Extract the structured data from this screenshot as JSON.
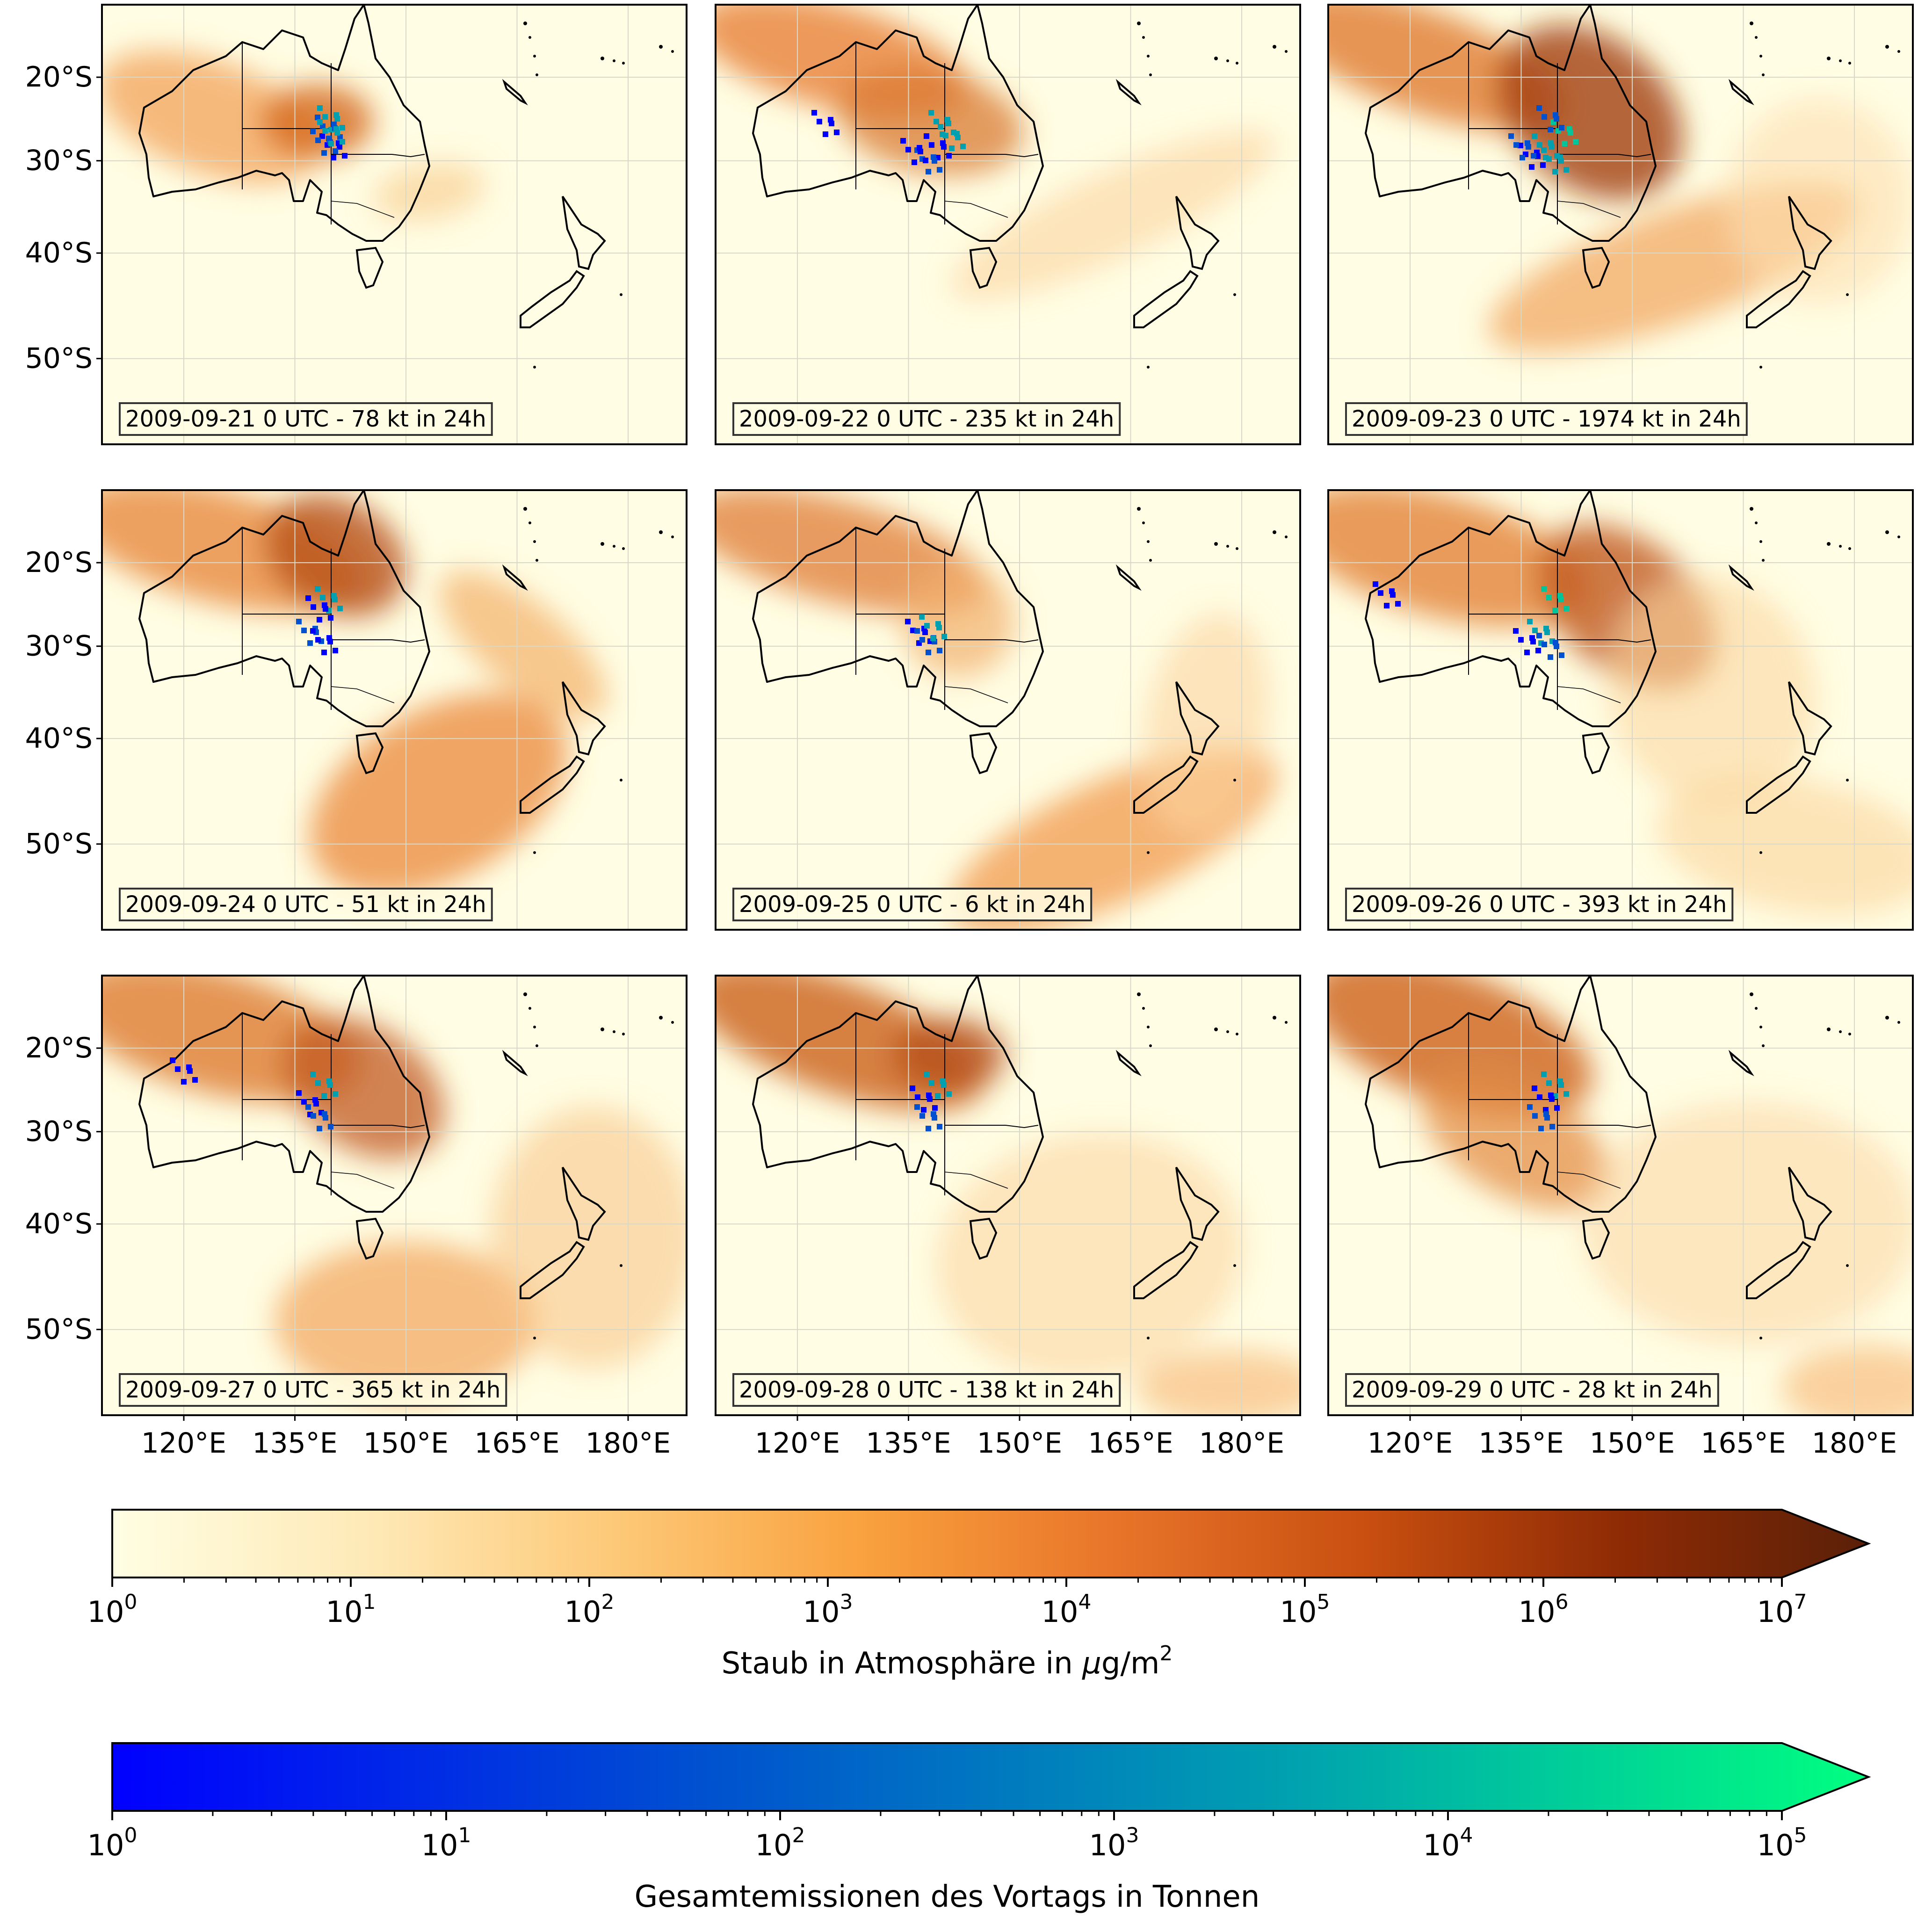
{
  "figure": {
    "lat_ticks": [
      "20°S",
      "30°S",
      "40°S",
      "50°S"
    ],
    "lon_ticks": [
      "120°E",
      "135°E",
      "150°E",
      "165°E",
      "180°E"
    ]
  },
  "panels": [
    {
      "label": "2009-09-21 0 UTC - 78 kt in 24h",
      "date": "2009-09-21",
      "emission_kt": 78
    },
    {
      "label": "2009-09-22 0 UTC - 235 kt in 24h",
      "date": "2009-09-22",
      "emission_kt": 235
    },
    {
      "label": "2009-09-23 0 UTC - 1974 kt in 24h",
      "date": "2009-09-23",
      "emission_kt": 1974
    },
    {
      "label": "2009-09-24 0 UTC - 51 kt in 24h",
      "date": "2009-09-24",
      "emission_kt": 51
    },
    {
      "label": "2009-09-25 0 UTC - 6 kt in 24h",
      "date": "2009-09-25",
      "emission_kt": 6
    },
    {
      "label": "2009-09-26 0 UTC - 393 kt in 24h",
      "date": "2009-09-26",
      "emission_kt": 393
    },
    {
      "label": "2009-09-27 0 UTC - 365 kt in 24h",
      "date": "2009-09-27",
      "emission_kt": 365
    },
    {
      "label": "2009-09-28 0 UTC - 138 kt in 24h",
      "date": "2009-09-28",
      "emission_kt": 138
    },
    {
      "label": "2009-09-29 0 UTC - 28 kt in 24h",
      "date": "2009-09-29",
      "emission_kt": 28
    }
  ],
  "colorbars": {
    "dust": {
      "label_pre": "Staub in Atmosphäre in ",
      "label_mu": "μ",
      "label_unit": "g/m",
      "label_sup": "2",
      "base": "10",
      "exponents": [
        "0",
        "1",
        "2",
        "3",
        "4",
        "5",
        "6",
        "7"
      ],
      "colors": [
        "#fffee3",
        "#feeab8",
        "#fdc978",
        "#f9a13e",
        "#e8742a",
        "#c84f10",
        "#8f2b05",
        "#5a2008"
      ]
    },
    "emissions": {
      "label": "Gesamtemissionen des Vortags in Tonnen",
      "base": "10",
      "exponents": [
        "0",
        "1",
        "2",
        "3",
        "4",
        "5"
      ],
      "colors": [
        "#0000ff",
        "#0050d0",
        "#00a0b0",
        "#00ff80"
      ]
    }
  }
}
